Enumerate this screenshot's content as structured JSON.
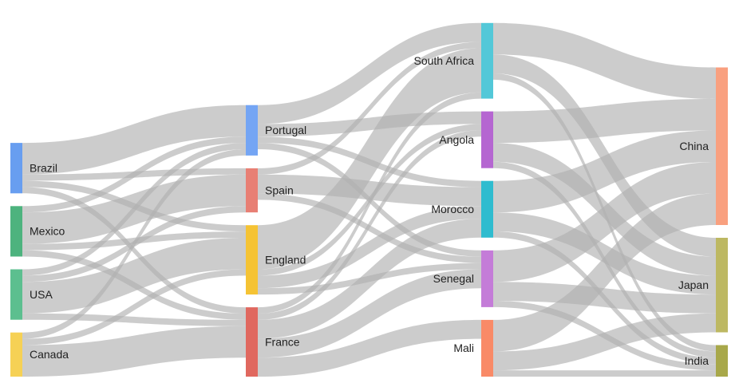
{
  "chart_data": {
    "type": "sankey",
    "nodes": [
      {
        "name": "Brazil",
        "color": "#689ef0",
        "column": 0
      },
      {
        "name": "Mexico",
        "color": "#4db37e",
        "column": 0
      },
      {
        "name": "USA",
        "color": "#5cbf8f",
        "column": 0
      },
      {
        "name": "Canada",
        "color": "#f6d155",
        "column": 0
      },
      {
        "name": "Portugal",
        "color": "#74a5f4",
        "column": 1
      },
      {
        "name": "Spain",
        "color": "#e87f74",
        "column": 1
      },
      {
        "name": "England",
        "color": "#f5c334",
        "column": 1
      },
      {
        "name": "France",
        "color": "#e0685f",
        "column": 1
      },
      {
        "name": "South Africa",
        "color": "#53c8d8",
        "column": 2
      },
      {
        "name": "Angola",
        "color": "#b566d1",
        "column": 2
      },
      {
        "name": "Morocco",
        "color": "#2fbccf",
        "column": 2
      },
      {
        "name": "Senegal",
        "color": "#c47cd8",
        "column": 2
      },
      {
        "name": "Mali",
        "color": "#f98a67",
        "column": 2
      },
      {
        "name": "China",
        "color": "#f9a07f",
        "column": 3
      },
      {
        "name": "Japan",
        "color": "#bdb862",
        "column": 3
      },
      {
        "name": "India",
        "color": "#a8a84a",
        "column": 3
      }
    ],
    "links": [
      {
        "source": "Brazil",
        "target": "Portugal",
        "value": 5
      },
      {
        "source": "Brazil",
        "target": "Spain",
        "value": 1
      },
      {
        "source": "Brazil",
        "target": "England",
        "value": 1
      },
      {
        "source": "Brazil",
        "target": "France",
        "value": 1
      },
      {
        "source": "Mexico",
        "target": "Portugal",
        "value": 1
      },
      {
        "source": "Mexico",
        "target": "Spain",
        "value": 5
      },
      {
        "source": "Mexico",
        "target": "England",
        "value": 1
      },
      {
        "source": "Mexico",
        "target": "France",
        "value": 1
      },
      {
        "source": "USA",
        "target": "Portugal",
        "value": 1
      },
      {
        "source": "USA",
        "target": "Spain",
        "value": 1
      },
      {
        "source": "USA",
        "target": "England",
        "value": 5
      },
      {
        "source": "USA",
        "target": "France",
        "value": 1
      },
      {
        "source": "Canada",
        "target": "Portugal",
        "value": 1
      },
      {
        "source": "Canada",
        "target": "England",
        "value": 1
      },
      {
        "source": "Canada",
        "target": "France",
        "value": 5
      },
      {
        "source": "Portugal",
        "target": "South Africa",
        "value": 3
      },
      {
        "source": "Portugal",
        "target": "Angola",
        "value": 2
      },
      {
        "source": "Portugal",
        "target": "Morocco",
        "value": 1
      },
      {
        "source": "Portugal",
        "target": "Senegal",
        "value": 1
      },
      {
        "source": "Spain",
        "target": "South Africa",
        "value": 1
      },
      {
        "source": "Spain",
        "target": "Morocco",
        "value": 3
      },
      {
        "source": "Spain",
        "target": "Senegal",
        "value": 1
      },
      {
        "source": "England",
        "target": "South Africa",
        "value": 7
      },
      {
        "source": "England",
        "target": "Angola",
        "value": 1
      },
      {
        "source": "England",
        "target": "Morocco",
        "value": 2
      },
      {
        "source": "England",
        "target": "Senegal",
        "value": 1
      },
      {
        "source": "France",
        "target": "South Africa",
        "value": 1
      },
      {
        "source": "France",
        "target": "Angola",
        "value": 1
      },
      {
        "source": "France",
        "target": "Morocco",
        "value": 3
      },
      {
        "source": "France",
        "target": "Senegal",
        "value": 3
      },
      {
        "source": "France",
        "target": "Mali",
        "value": 3
      },
      {
        "source": "South Africa",
        "target": "China",
        "value": 5
      },
      {
        "source": "South Africa",
        "target": "Japan",
        "value": 3
      },
      {
        "source": "South Africa",
        "target": "India",
        "value": 1
      },
      {
        "source": "Angola",
        "target": "China",
        "value": 5
      },
      {
        "source": "Angola",
        "target": "Japan",
        "value": 3
      },
      {
        "source": "Angola",
        "target": "India",
        "value": 1
      },
      {
        "source": "Morocco",
        "target": "China",
        "value": 5
      },
      {
        "source": "Morocco",
        "target": "Japan",
        "value": 3
      },
      {
        "source": "Morocco",
        "target": "India",
        "value": 1
      },
      {
        "source": "Senegal",
        "target": "China",
        "value": 5
      },
      {
        "source": "Senegal",
        "target": "Japan",
        "value": 3
      },
      {
        "source": "Senegal",
        "target": "India",
        "value": 1
      },
      {
        "source": "Mali",
        "target": "China",
        "value": 5
      },
      {
        "source": "Mali",
        "target": "Japan",
        "value": 3
      },
      {
        "source": "Mali",
        "target": "India",
        "value": 1
      }
    ]
  }
}
